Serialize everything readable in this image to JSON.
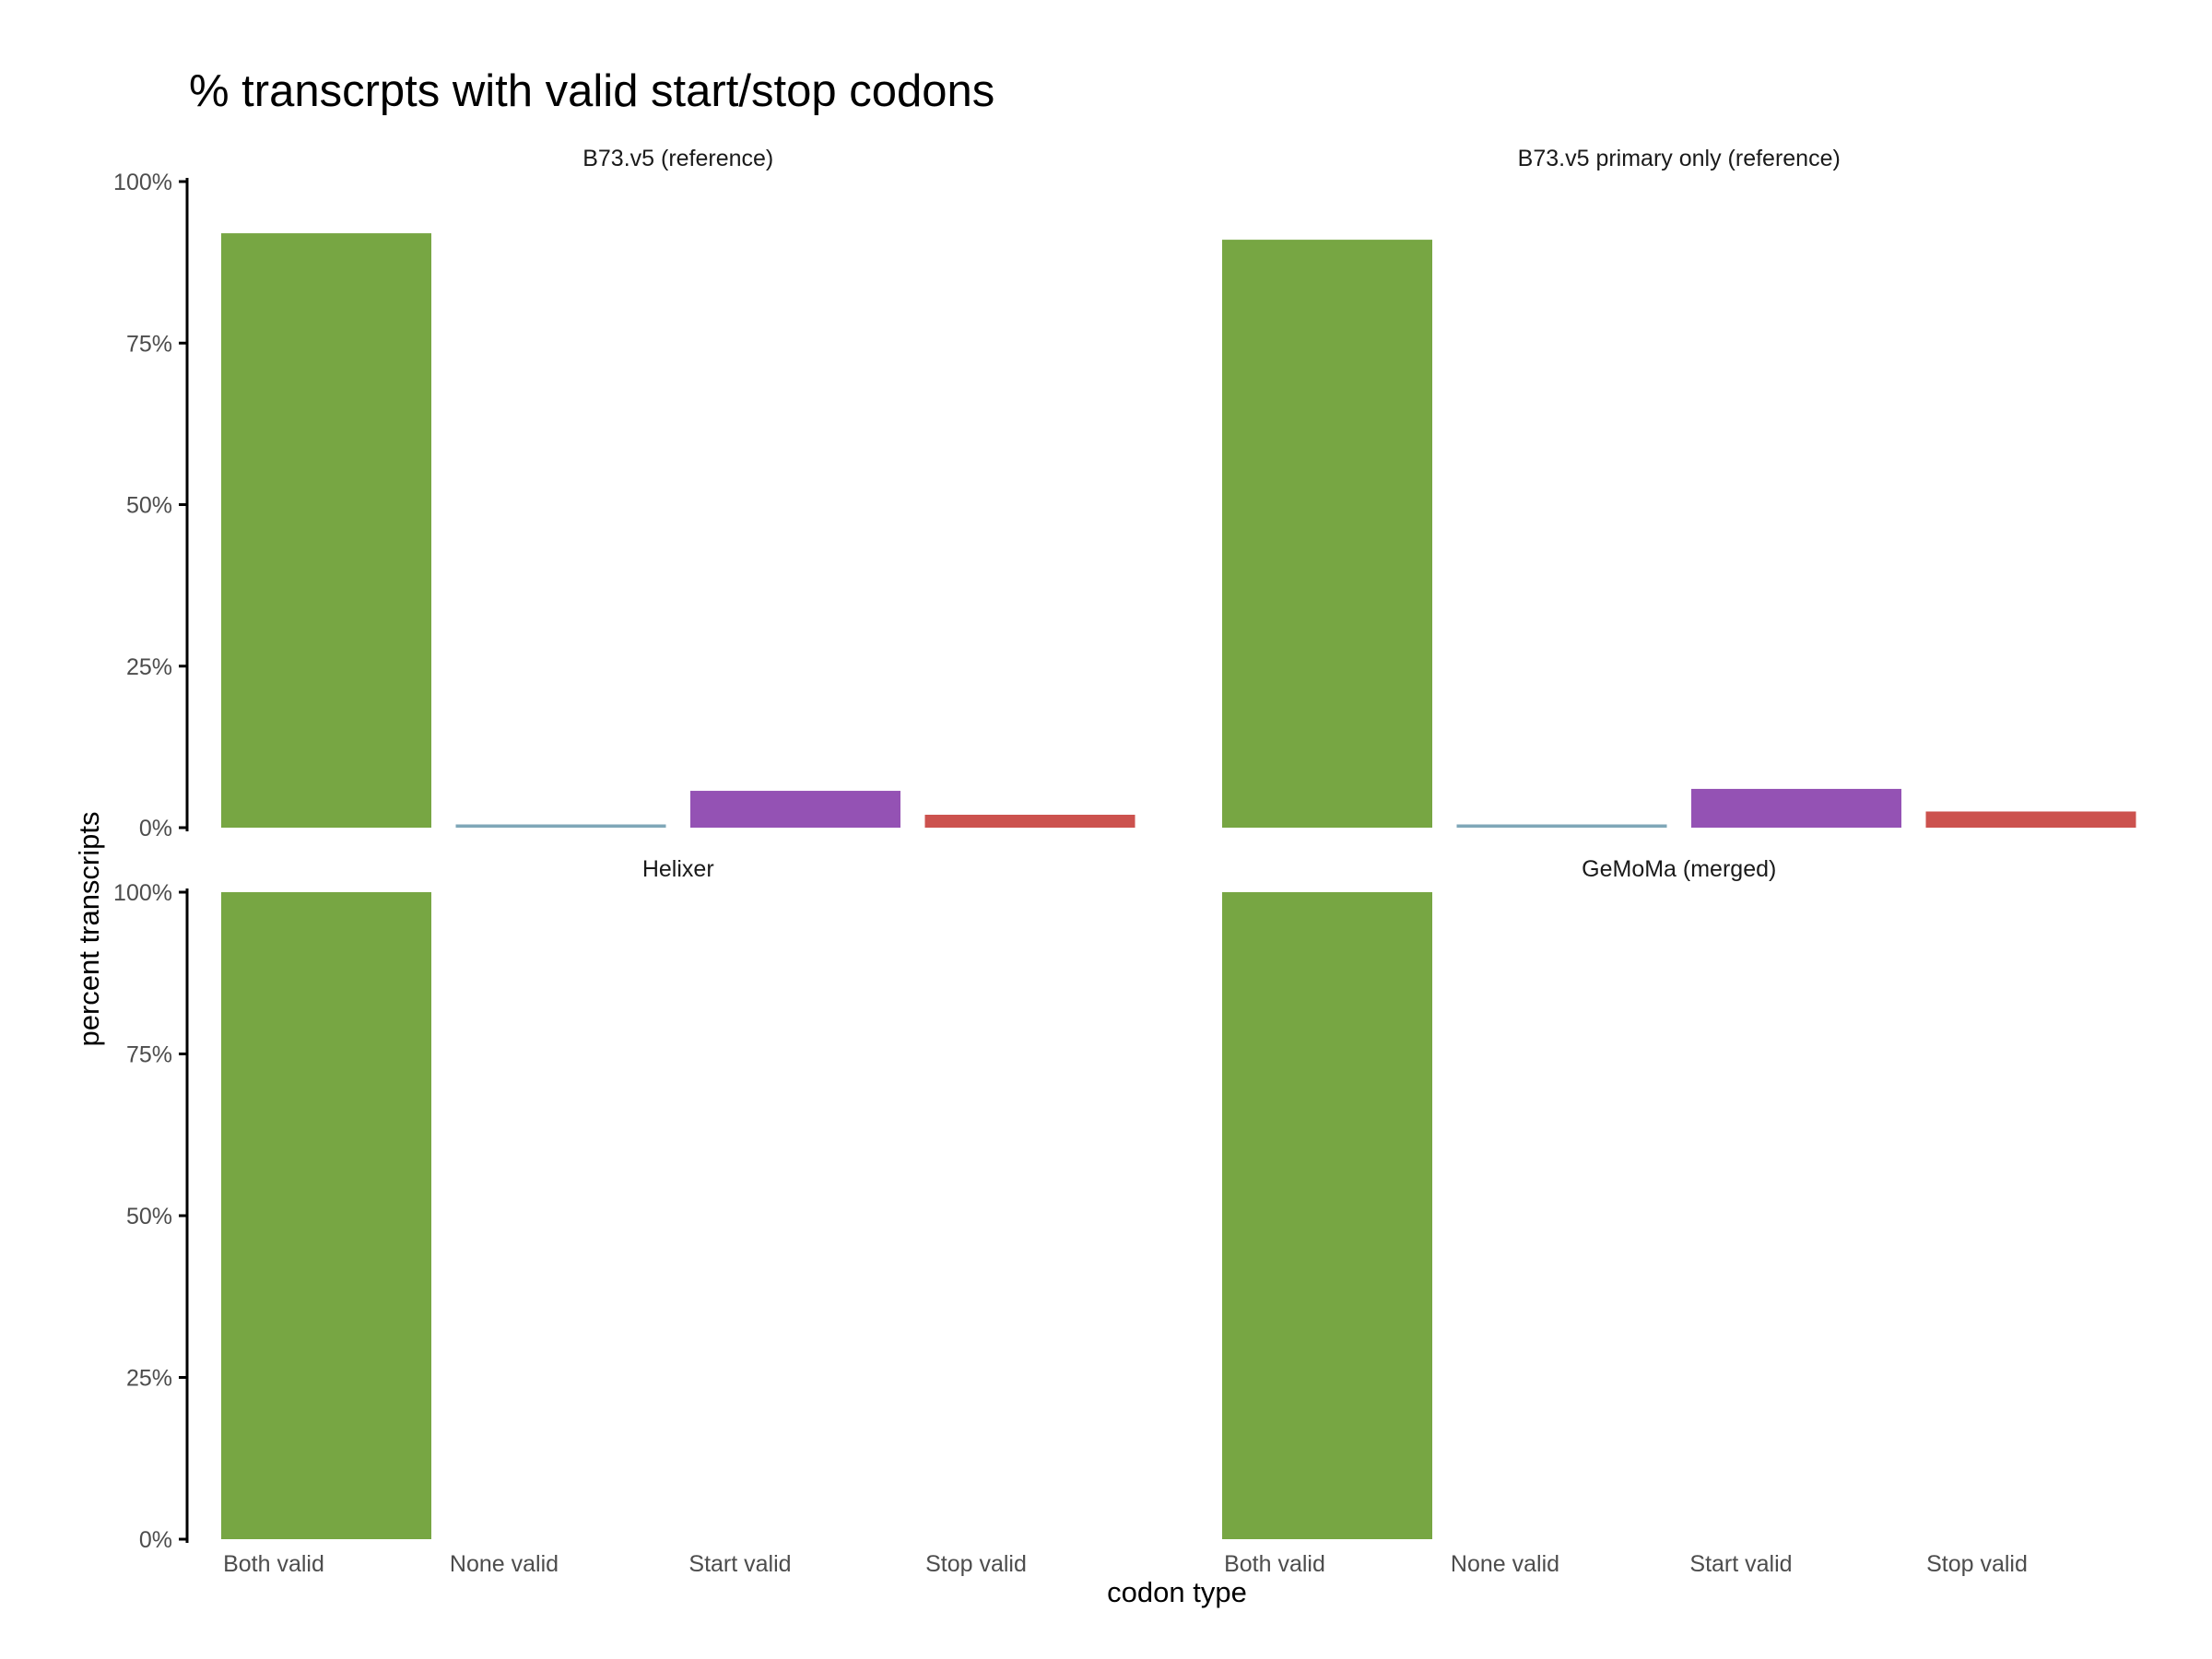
{
  "chart_data": {
    "type": "bar",
    "title": "% transcrpts with valid start/stop codons",
    "xlabel": "codon type",
    "ylabel": "percent transcripts",
    "ylim": [
      0,
      100
    ],
    "y_ticks": [
      0,
      25,
      50,
      75,
      100
    ],
    "y_tick_labels": [
      "0%",
      "25%",
      "50%",
      "75%",
      "100%"
    ],
    "categories": [
      "Both valid",
      "None valid",
      "Start valid",
      "Stop valid"
    ],
    "colors": {
      "Both valid": "#77A643",
      "None valid": "#7FA7B8",
      "Start valid": "#9452B4",
      "Stop valid": "#CC524E"
    },
    "facet_layout": "2x2",
    "facets": [
      {
        "label": "B73.v5 (reference)",
        "values": [
          92.0,
          0.5,
          5.7,
          2.0
        ]
      },
      {
        "label": "B73.v5 primary only (reference)",
        "values": [
          91.0,
          0.5,
          6.0,
          2.5
        ]
      },
      {
        "label": "Helixer",
        "values": [
          100.0,
          0,
          0,
          0
        ]
      },
      {
        "label": "GeMoMa (merged)",
        "values": [
          100.0,
          0,
          0,
          0
        ]
      }
    ]
  }
}
